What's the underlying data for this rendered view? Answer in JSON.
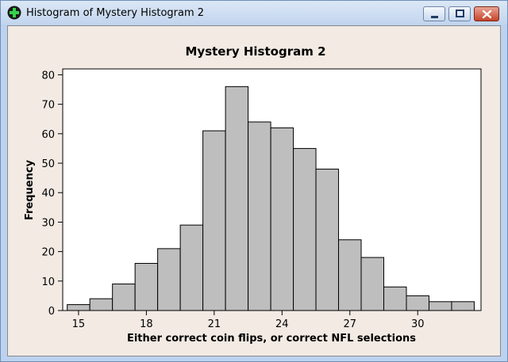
{
  "window": {
    "title": "Histogram of Mystery Histogram 2",
    "icon": "minitab-cross-icon",
    "controls": {
      "minimize": "minimize-icon",
      "maximize": "maximize-icon",
      "close": "close-icon"
    }
  },
  "colors": {
    "plot_bg": "#ffffff",
    "bar_fill": "#bebebe",
    "bar_stroke": "#000000",
    "frame_bg": "#f2eae3"
  },
  "chart_data": {
    "type": "bar",
    "title": "Mystery Histogram 2",
    "xlabel": "Either correct coin flips, or correct NFL selections",
    "ylabel": "Frequency",
    "bin_width": 1,
    "x_bins": [
      15,
      16,
      17,
      18,
      19,
      20,
      21,
      22,
      23,
      24,
      25,
      26,
      27,
      28,
      29,
      30,
      31,
      32
    ],
    "values": [
      2,
      4,
      9,
      16,
      21,
      29,
      61,
      76,
      64,
      62,
      55,
      48,
      24,
      18,
      8,
      5,
      3,
      3
    ],
    "xlim": [
      14.3,
      32.8
    ],
    "ylim": [
      0,
      82
    ],
    "x_ticks": [
      15,
      18,
      21,
      24,
      27,
      30
    ],
    "y_ticks": [
      0,
      10,
      20,
      30,
      40,
      50,
      60,
      70,
      80
    ],
    "grid": false,
    "legend": "none"
  }
}
